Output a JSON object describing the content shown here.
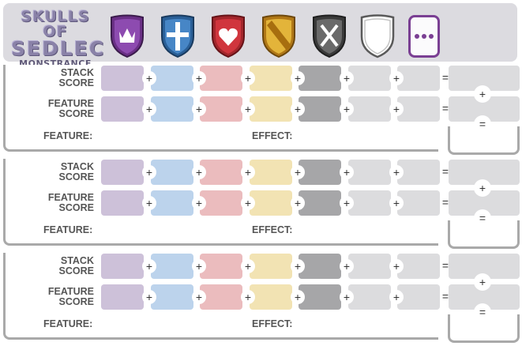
{
  "header": {
    "logo_line1": "SKULLS OF",
    "logo_line2": "SEDLEC",
    "logo_line3": "MONSTRANCE",
    "icons": [
      "crown-shield-icon",
      "cross-shield-icon",
      "heart-shield-icon",
      "bend-shield-icon",
      "saltire-shield-icon",
      "blank-shield-icon",
      "more-card-icon"
    ]
  },
  "labels": {
    "stack_1": "STACK",
    "stack_2": "SCORE",
    "feature_1": "FEATURE",
    "feature_2": "SCORE",
    "feature": "FEATURE:",
    "effect": "EFFECT:",
    "plus": "+",
    "equals": "="
  },
  "colors": {
    "purple": "#cdc1d9",
    "blue": "#bcd3ec",
    "red": "#ebbcbe",
    "yellow": "#f2e3b3",
    "gray": "#a6a6a8",
    "light": "#dcdcde",
    "light2": "#dcdcde"
  },
  "sections": [
    1,
    2,
    3
  ]
}
